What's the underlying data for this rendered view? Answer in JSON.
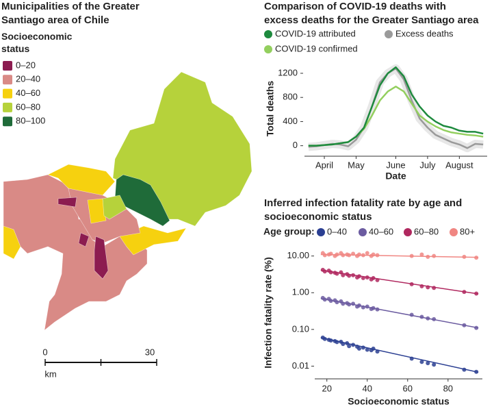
{
  "map": {
    "title": "Municipalities of the Greater Santiago area of Chile",
    "legend_title": "Socioeconomic status",
    "legend": [
      {
        "label": "0–20",
        "color": "#8c1c50"
      },
      {
        "label": "20–40",
        "color": "#d98a86"
      },
      {
        "label": "40–60",
        "color": "#f6d10f"
      },
      {
        "label": "60–80",
        "color": "#b6d23b"
      },
      {
        "label": "80–100",
        "color": "#1f6b39"
      }
    ],
    "scale": {
      "ticks": [
        0,
        30
      ],
      "unit": "km"
    }
  },
  "chart_data": [
    {
      "type": "line",
      "title": "Comparison of COVID-19 deaths with excess deaths for the Greater Santiago area",
      "x_label": "Date",
      "y_label": "Total deaths",
      "categories": [
        null,
        null,
        "April",
        null,
        null,
        null,
        "May",
        null,
        null,
        null,
        null,
        "June",
        null,
        null,
        null,
        "July",
        null,
        null,
        null,
        "August",
        null,
        null,
        null
      ],
      "series": [
        {
          "name": "COVID-19 attributed",
          "color": "#1e8a3e",
          "values": [
            0,
            0,
            10,
            20,
            40,
            60,
            150,
            300,
            650,
            1000,
            1200,
            1300,
            1150,
            850,
            650,
            500,
            400,
            330,
            300,
            250,
            230,
            230,
            200
          ]
        },
        {
          "name": "Excess deaths",
          "color": "#9a9a9a",
          "values": [
            -20,
            -10,
            10,
            30,
            20,
            -10,
            100,
            300,
            650,
            1050,
            1200,
            1280,
            1100,
            750,
            450,
            300,
            180,
            120,
            60,
            20,
            -40,
            30,
            20
          ]
        },
        {
          "name": "COVID-19 confirmed",
          "color": "#93cf5e",
          "values": [
            0,
            0,
            10,
            20,
            40,
            60,
            150,
            280,
            500,
            750,
            900,
            980,
            900,
            700,
            500,
            400,
            320,
            260,
            220,
            200,
            180,
            170,
            150
          ]
        }
      ],
      "ylim": [
        -140,
        1370
      ],
      "yticks": [
        0,
        400,
        800,
        1200
      ]
    },
    {
      "type": "scatter",
      "title": "Inferred infection fatality rate by age and socioeconomic status",
      "x_label": "Socioeconomic status",
      "y_label": "Infection fatality rate (%)",
      "legend_title": "Age group:",
      "ylog": true,
      "x": [
        18,
        19,
        21,
        22,
        24,
        25,
        27,
        28,
        30,
        31,
        33,
        35,
        36,
        38,
        40,
        42,
        43,
        45,
        62,
        67,
        70,
        73,
        88,
        94
      ],
      "series": [
        {
          "name": "0–40",
          "color": "#2b3f92",
          "values": [
            0.06,
            0.055,
            0.052,
            0.05,
            0.048,
            0.045,
            0.046,
            0.04,
            0.042,
            0.035,
            0.038,
            0.034,
            0.03,
            0.032,
            0.028,
            0.027,
            0.03,
            0.025,
            0.016,
            0.013,
            0.012,
            0.011,
            0.008,
            0.007
          ],
          "fit": {
            "x": [
              17,
              95
            ],
            "values": [
              0.06,
              0.0068
            ]
          }
        },
        {
          "name": "40–60",
          "color": "#6b5ba0",
          "values": [
            0.72,
            0.65,
            0.68,
            0.6,
            0.62,
            0.55,
            0.58,
            0.5,
            0.52,
            0.48,
            0.5,
            0.42,
            0.45,
            0.4,
            0.42,
            0.36,
            0.38,
            0.35,
            0.25,
            0.22,
            0.2,
            0.19,
            0.13,
            0.11
          ],
          "fit": {
            "x": [
              17,
              95
            ],
            "values": [
              0.7,
              0.11
            ]
          }
        },
        {
          "name": "60–80",
          "color": "#b0285f",
          "values": [
            4.2,
            3.8,
            4,
            3.6,
            3.5,
            3.3,
            3.6,
            3.0,
            3.2,
            2.9,
            3.0,
            2.6,
            2.8,
            2.5,
            2.6,
            2.3,
            2.5,
            2.2,
            1.7,
            1.5,
            1.4,
            1.35,
            1.05,
            0.95
          ],
          "fit": {
            "x": [
              17,
              95
            ],
            "values": [
              4.1,
              0.93
            ]
          }
        },
        {
          "name": "80+",
          "color": "#f08682",
          "values": [
            12,
            10.5,
            11,
            11.5,
            10,
            11,
            12,
            10.5,
            11,
            10.5,
            11.5,
            10,
            11,
            10.5,
            12,
            10,
            11,
            10.5,
            10,
            11,
            9.5,
            10,
            9.5,
            9
          ],
          "fit": {
            "x": [
              17,
              95
            ],
            "values": [
              11,
              9.2
            ]
          }
        }
      ],
      "xlim": [
        14,
        97
      ],
      "xticks": [
        20,
        40,
        60,
        80
      ],
      "ylim": [
        0.0045,
        18
      ],
      "yticks": [
        0.01,
        {
          "value": 0.1,
          "label": "0.10"
        },
        {
          "value": 1,
          "label": "1.00"
        },
        {
          "value": 10,
          "label": "10.00"
        }
      ]
    }
  ]
}
